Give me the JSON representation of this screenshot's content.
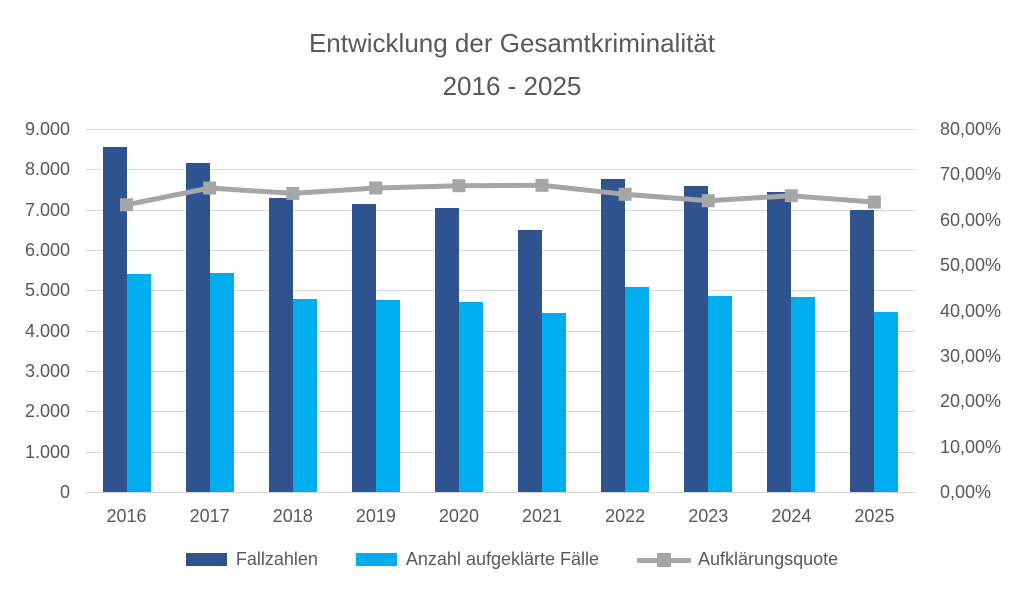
{
  "chart_data": {
    "type": "bar-line-combo",
    "title_line1": "Entwicklung der Gesamtkriminalität",
    "title_line2": "2016 - 2025",
    "categories": [
      "2016",
      "2017",
      "2018",
      "2019",
      "2020",
      "2021",
      "2022",
      "2023",
      "2024",
      "2025"
    ],
    "series": [
      {
        "name": "Fallzahlen",
        "type": "bar",
        "axis": "left",
        "color": "#2e538f",
        "values": [
          8550,
          8150,
          7300,
          7150,
          7050,
          6500,
          7750,
          7600,
          7450,
          7000
        ]
      },
      {
        "name": "Anzahl aufgeklärte Fälle",
        "type": "bar",
        "axis": "left",
        "color": "#00aeef",
        "values": [
          5400,
          5420,
          4780,
          4760,
          4710,
          4430,
          5080,
          4850,
          4840,
          4460
        ]
      },
      {
        "name": "Aufklärungsquote",
        "type": "line",
        "axis": "right",
        "color": "#a6a6a6",
        "marker": "square",
        "values_percent": [
          63.3,
          67.0,
          65.8,
          67.0,
          67.5,
          67.6,
          65.6,
          64.2,
          65.3,
          63.9
        ]
      }
    ],
    "left_axis": {
      "min": 0,
      "max": 9000,
      "step": 1000,
      "tick_labels": [
        "9.000",
        "8.000",
        "7.000",
        "6.000",
        "5.000",
        "4.000",
        "3.000",
        "2.000",
        "1.000",
        "0"
      ]
    },
    "right_axis": {
      "min": 0,
      "max": 80,
      "step": 10,
      "tick_labels": [
        "80,00%",
        "70,00%",
        "60,00%",
        "50,00%",
        "40,00%",
        "30,00%",
        "20,00%",
        "10,00%",
        "0,00%"
      ]
    },
    "grid": true,
    "legend_position": "bottom",
    "colors": {
      "gridline": "#d9d9d9",
      "text": "#595959",
      "background": "#ffffff"
    }
  }
}
